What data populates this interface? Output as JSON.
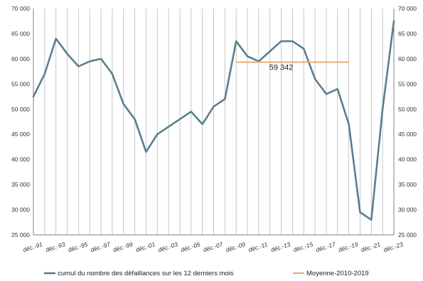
{
  "chart_data": {
    "type": "line",
    "title": "",
    "xlabel": "",
    "ylabel": "",
    "ylim": [
      25000,
      70000
    ],
    "y_ticks": [
      "25 000",
      "30 000",
      "35 000",
      "40 000",
      "45 000",
      "50 000",
      "55 000",
      "60 000",
      "65 000",
      "70 000"
    ],
    "y_ticks_right": [
      "25 000",
      "30 000",
      "35 000",
      "40 000",
      "45 000",
      "50 000",
      "55 000",
      "60 000",
      "65 000",
      "70 000"
    ],
    "x_ticks": [
      "déc.-91",
      "déc.-93",
      "déc.-95",
      "déc.-97",
      "déc.-99",
      "déc.-01",
      "déc.-03",
      "déc.-05",
      "déc.-07",
      "déc.-09",
      "déc.-11",
      "déc.-13",
      "déc.-15",
      "déc.-17",
      "déc.-19",
      "déc.-21",
      "déc.-23"
    ],
    "grid": "vertical",
    "legend_position": "bottom",
    "series": [
      {
        "name": "cumul du nombre des défaillances sur les 12 derniers mois",
        "color": "#5a7f8e",
        "x": [
          "déc.-91",
          "déc.-92",
          "déc.-93",
          "déc.-94",
          "déc.-95",
          "déc.-96",
          "déc.-97",
          "déc.-98",
          "déc.-99",
          "déc.-00",
          "déc.-01",
          "déc.-02",
          "déc.-03",
          "déc.-04",
          "déc.-05",
          "déc.-06",
          "déc.-07",
          "déc.-08",
          "déc.-09",
          "déc.-10",
          "déc.-11",
          "déc.-12",
          "déc.-13",
          "déc.-14",
          "déc.-15",
          "déc.-16",
          "déc.-17",
          "déc.-18",
          "déc.-19",
          "déc.-20",
          "déc.-21",
          "déc.-22",
          "déc.-23"
        ],
        "values": [
          52500,
          57000,
          64000,
          61000,
          58500,
          59500,
          60000,
          57000,
          51000,
          48000,
          41500,
          45000,
          46500,
          48000,
          49500,
          47000,
          50500,
          52000,
          63500,
          60500,
          59500,
          61500,
          63500,
          63500,
          62000,
          56000,
          53000,
          54000,
          47000,
          29500,
          28000,
          50000,
          67500
        ]
      },
      {
        "name": "Moyenne-2010-2019",
        "color": "#e6a86b",
        "x_range": [
          "déc.-09",
          "déc.-19"
        ],
        "value": 59342
      }
    ],
    "annotations": [
      {
        "text": "59 342",
        "x": "déc.-13",
        "y": 57800
      }
    ]
  }
}
